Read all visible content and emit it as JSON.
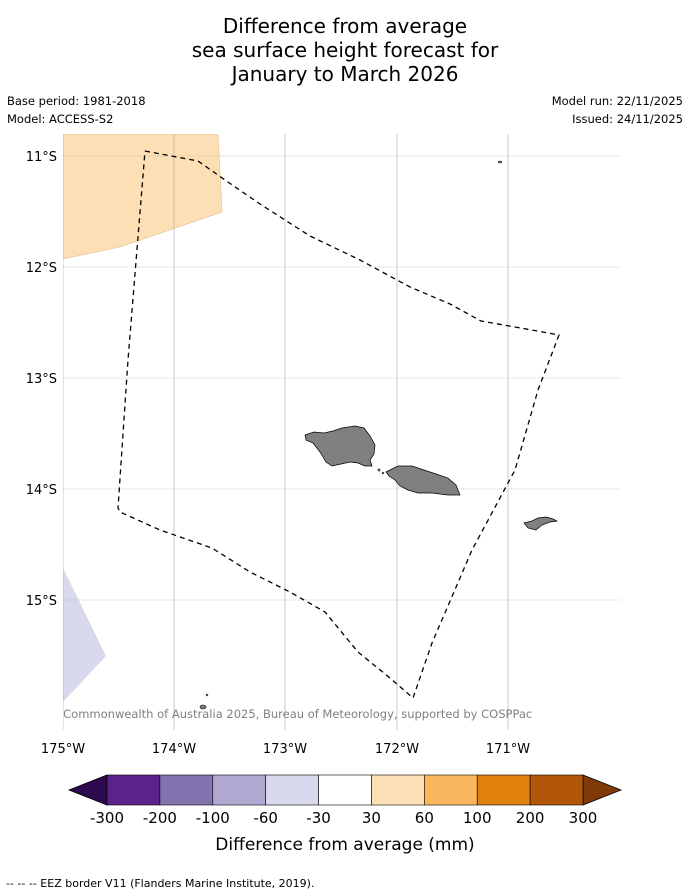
{
  "title": {
    "line1": "Difference from average",
    "line2": "sea surface height forecast for",
    "line3": "January to March 2026"
  },
  "meta": {
    "base_period": "Base period: 1981-2018",
    "model": "Model: ACCESS-S2",
    "model_run": "Model run: 22/11/2025",
    "issued": "Issued: 24/11/2025"
  },
  "map": {
    "lat_labels": [
      "11°S",
      "12°S",
      "13°S",
      "14°S",
      "15°S"
    ],
    "lon_labels": [
      "175°W",
      "174°W",
      "173°W",
      "172°W",
      "171°W"
    ],
    "copyright": "© Commonwealth of Australia 2025, Bureau of Meteorology, supported by COSPPac",
    "land_color": "#808080",
    "grid_color": "#9a9a9a"
  },
  "colorbar": {
    "ticks": [
      "-300",
      "-200",
      "-100",
      "-60",
      "-30",
      "30",
      "60",
      "100",
      "200",
      "300"
    ],
    "colors": [
      "#5b2289",
      "#8272ad",
      "#b0a8d1",
      "#d8d9ec",
      "#ffffff",
      "#fddfb5",
      "#fbb660",
      "#e1820f",
      "#b15509"
    ],
    "low_extend_color": "#2d0a4e",
    "high_extend_color": "#7f3a08",
    "label": "Difference from average (mm)"
  },
  "footer": {
    "legend": "--  --  -- EEZ border V11 (Flanders Marine Institute, 2019)."
  }
}
